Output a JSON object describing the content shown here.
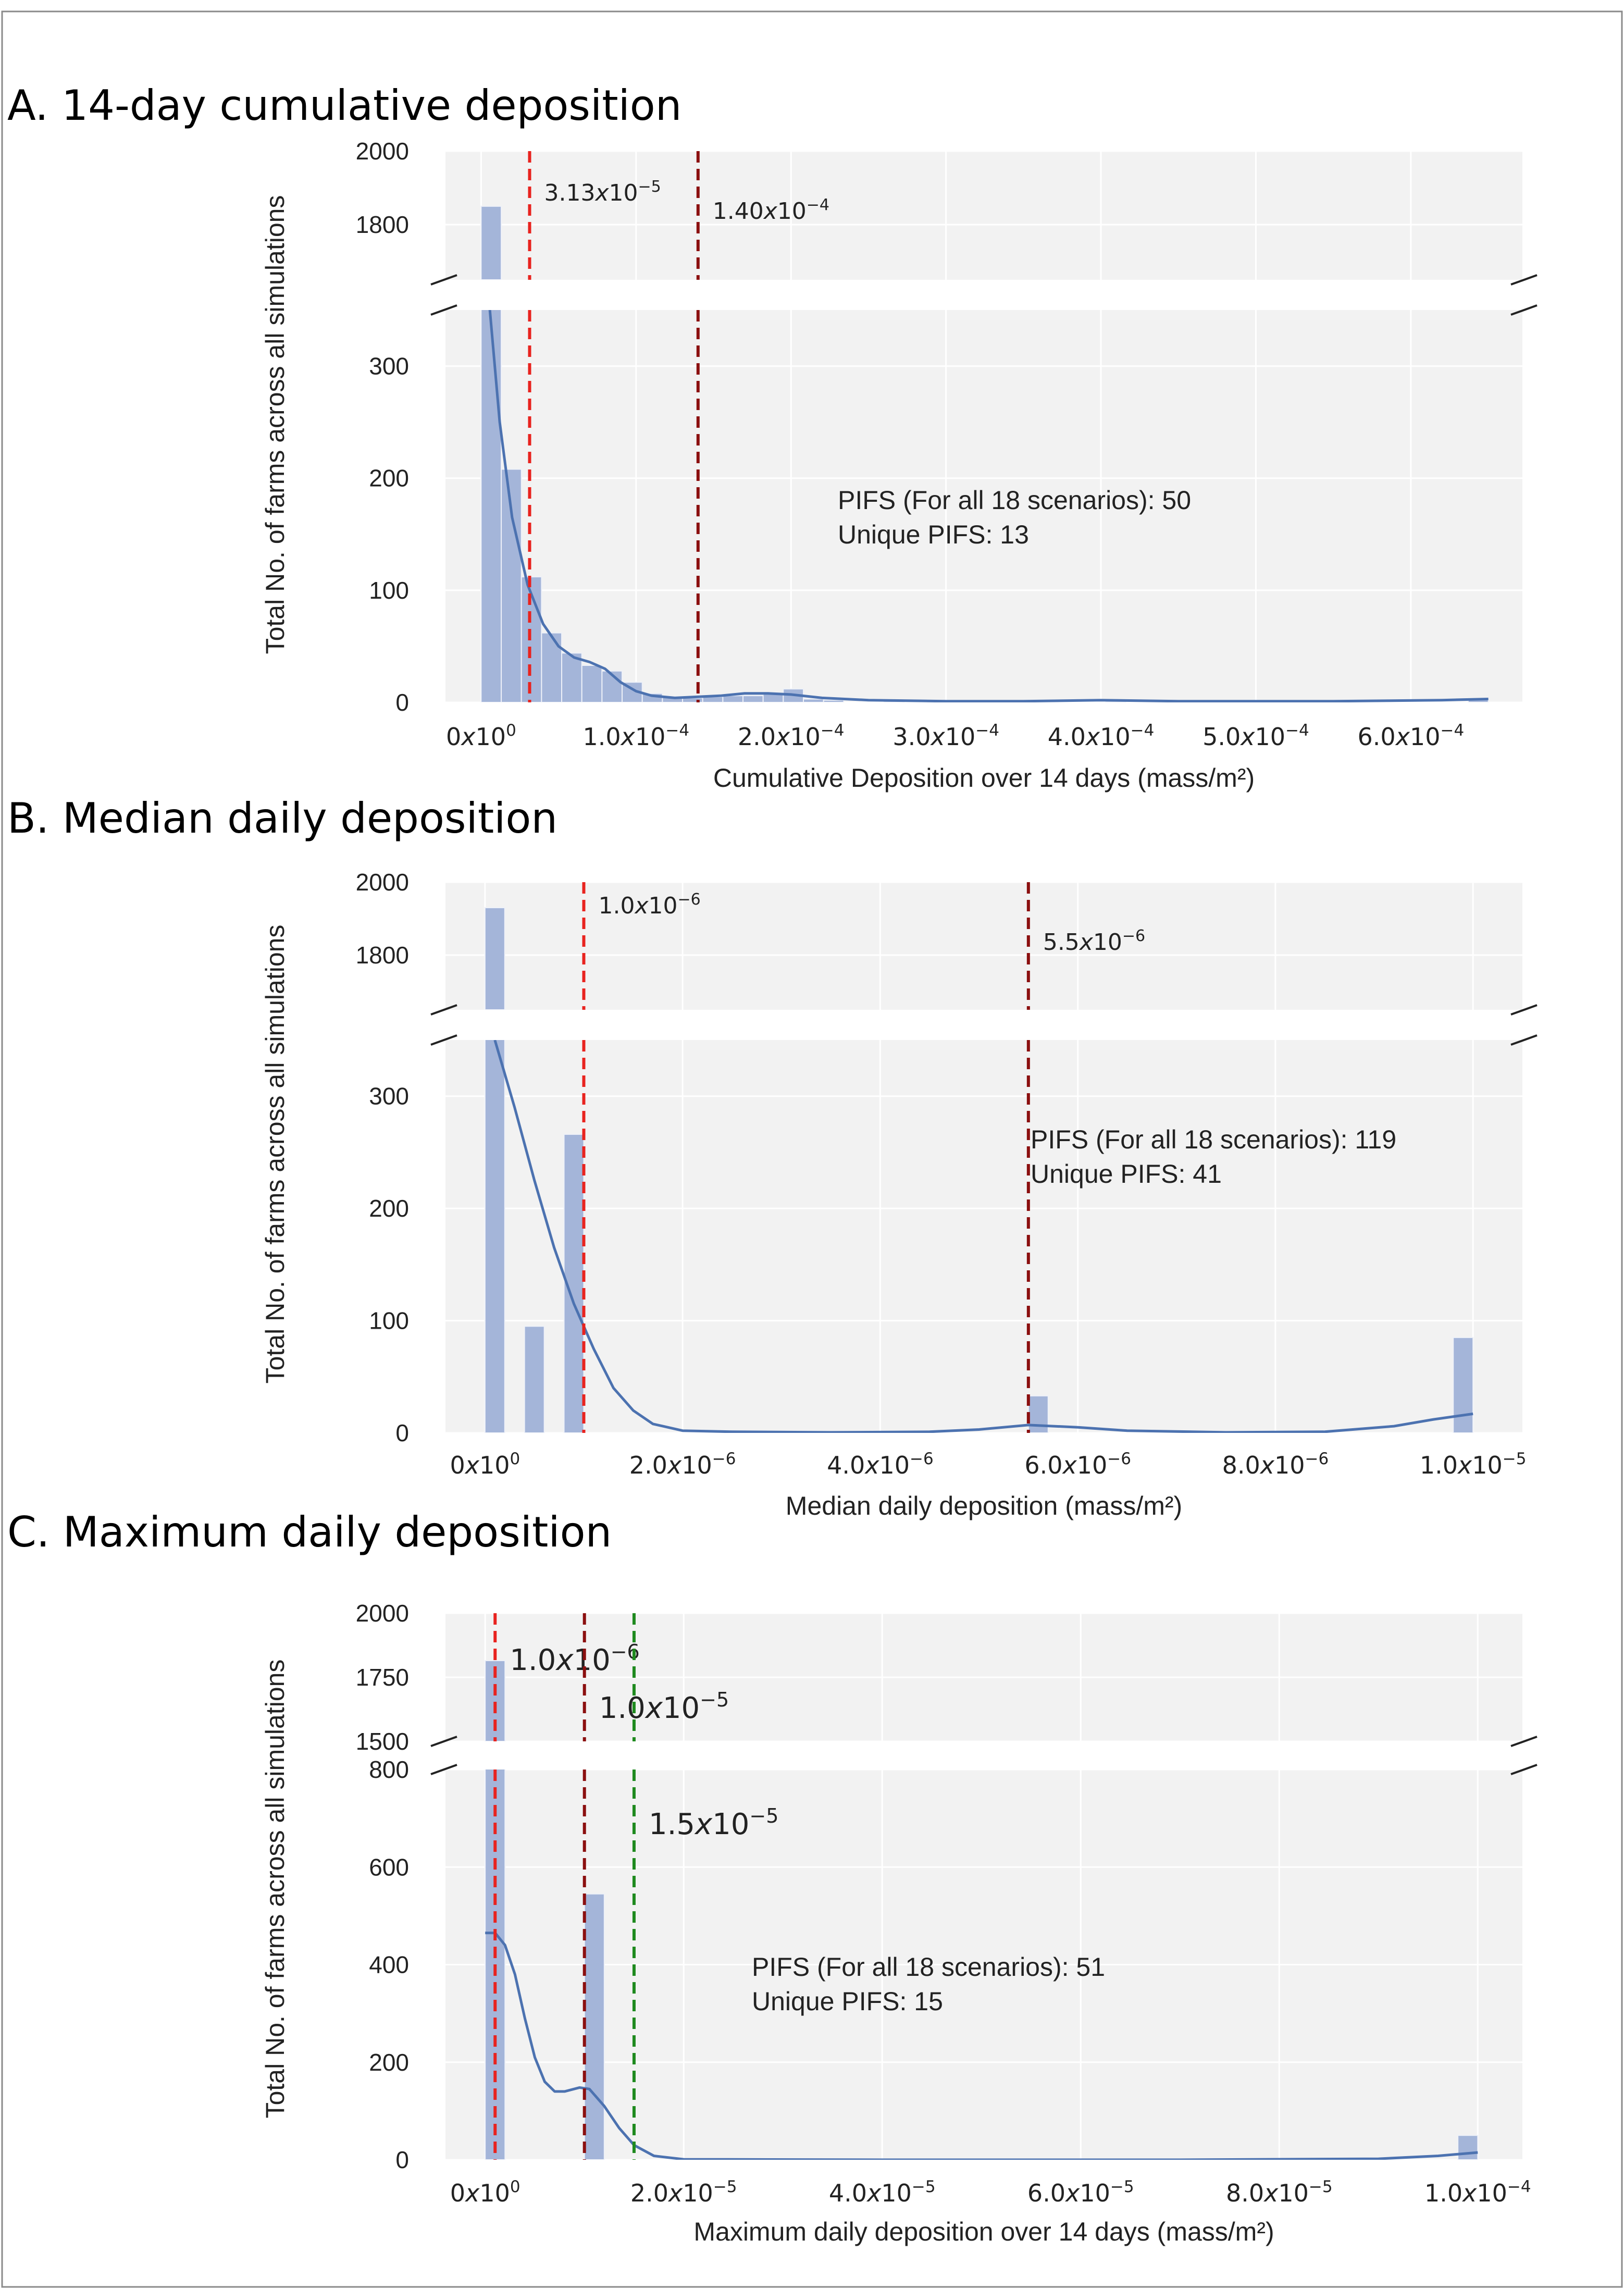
{
  "chart_data": [
    {
      "type": "bar",
      "panel_title": "A. 14-day cumulative deposition",
      "xlabel": "Cumulative Deposition over 14 days (mass/m²)",
      "ylabel": "Total No. of farms across all simulations",
      "xlim": [
        -2.3e-05,
        0.000672
      ],
      "x_ticks": [
        {
          "value": 0,
          "label": "0x10",
          "exp": "0"
        },
        {
          "value": 0.0001,
          "label": "1.0x10",
          "exp": "−4"
        },
        {
          "value": 0.0002,
          "label": "2.0x10",
          "exp": "−4"
        },
        {
          "value": 0.0003,
          "label": "3.0x10",
          "exp": "−4"
        },
        {
          "value": 0.0004,
          "label": "4.0x10",
          "exp": "−4"
        },
        {
          "value": 0.0005,
          "label": "5.0x10",
          "exp": "−4"
        },
        {
          "value": 0.0006,
          "label": "6.0x10",
          "exp": "−4"
        }
      ],
      "upper_ylim": [
        1650,
        2000
      ],
      "upper_ticks": [
        1800,
        2000
      ],
      "lower_ylim": [
        0,
        350
      ],
      "lower_ticks": [
        0,
        100,
        200,
        300
      ],
      "bin_width": 1.3e-05,
      "bars": [
        {
          "x": 0,
          "count": 1850
        },
        {
          "x": 1.3e-05,
          "count": 208
        },
        {
          "x": 2.6e-05,
          "count": 112
        },
        {
          "x": 3.9e-05,
          "count": 62
        },
        {
          "x": 5.2e-05,
          "count": 44
        },
        {
          "x": 6.5e-05,
          "count": 33
        },
        {
          "x": 7.8e-05,
          "count": 28
        },
        {
          "x": 9.1e-05,
          "count": 18
        },
        {
          "x": 0.000104,
          "count": 8
        },
        {
          "x": 0.000117,
          "count": 5
        },
        {
          "x": 0.00013,
          "count": 4
        },
        {
          "x": 0.000143,
          "count": 5
        },
        {
          "x": 0.000156,
          "count": 6
        },
        {
          "x": 0.000169,
          "count": 6
        },
        {
          "x": 0.000182,
          "count": 8
        },
        {
          "x": 0.000195,
          "count": 12
        },
        {
          "x": 0.000208,
          "count": 3
        },
        {
          "x": 0.000221,
          "count": 2
        },
        {
          "x": 0.00026,
          "count": 1
        },
        {
          "x": 0.000312,
          "count": 1
        },
        {
          "x": 0.000403,
          "count": 1
        },
        {
          "x": 0.000637,
          "count": 3
        }
      ],
      "kde": [
        [
          5e-06,
          360
        ],
        [
          1.2e-05,
          250
        ],
        [
          2e-05,
          165
        ],
        [
          3e-05,
          105
        ],
        [
          4e-05,
          70
        ],
        [
          5e-05,
          50
        ],
        [
          6e-05,
          40
        ],
        [
          7e-05,
          36
        ],
        [
          8e-05,
          30
        ],
        [
          9e-05,
          18
        ],
        [
          0.0001,
          10
        ],
        [
          0.00011,
          6
        ],
        [
          0.000125,
          4
        ],
        [
          0.00014,
          5
        ],
        [
          0.000155,
          6
        ],
        [
          0.00017,
          8
        ],
        [
          0.000185,
          8
        ],
        [
          0.0002,
          7
        ],
        [
          0.00022,
          4
        ],
        [
          0.00025,
          2
        ],
        [
          0.0003,
          1
        ],
        [
          0.00035,
          1
        ],
        [
          0.0004,
          2
        ],
        [
          0.00045,
          1
        ],
        [
          0.00055,
          1
        ],
        [
          0.00062,
          2
        ],
        [
          0.00065,
          3
        ]
      ],
      "lines": [
        {
          "x": 3.13e-05,
          "color": "#e8231f",
          "label": "3.13x10",
          "exp": "−5"
        },
        {
          "x": 0.00014,
          "color": "#8b0f0f",
          "label": "1.40x10",
          "exp": "−4"
        }
      ],
      "annotation": [
        "PIFS (For all 18 scenarios): 50",
        "Unique PIFS: 13"
      ]
    },
    {
      "type": "bar",
      "panel_title": "B. Median daily deposition",
      "xlabel": "Median daily deposition (mass/m²)",
      "ylabel": "Total No. of farms across all simulations",
      "xlim": [
        -4e-07,
        1.05e-05
      ],
      "x_ticks": [
        {
          "value": 0,
          "label": "0x10",
          "exp": "0"
        },
        {
          "value": 2e-06,
          "label": "2.0x10",
          "exp": "−6"
        },
        {
          "value": 4e-06,
          "label": "4.0x10",
          "exp": "−6"
        },
        {
          "value": 6e-06,
          "label": "6.0x10",
          "exp": "−6"
        },
        {
          "value": 8e-06,
          "label": "8.0x10",
          "exp": "−6"
        },
        {
          "value": 1e-05,
          "label": "1.0x10",
          "exp": "−5"
        }
      ],
      "upper_ylim": [
        1650,
        2000
      ],
      "upper_ticks": [
        1800,
        2000
      ],
      "lower_ylim": [
        0,
        350
      ],
      "lower_ticks": [
        0,
        100,
        200,
        300
      ],
      "bin_width": 2e-07,
      "bars": [
        {
          "x": 0,
          "count": 1930
        },
        {
          "x": 4e-07,
          "count": 95
        },
        {
          "x": 8e-07,
          "count": 266
        },
        {
          "x": 5.5e-06,
          "count": 33
        },
        {
          "x": 9.8e-06,
          "count": 85
        }
      ],
      "kde": [
        [
          1e-07,
          350
        ],
        [
          3e-07,
          290
        ],
        [
          5e-07,
          225
        ],
        [
          7e-07,
          165
        ],
        [
          9e-07,
          115
        ],
        [
          1.1e-06,
          75
        ],
        [
          1.3e-06,
          40
        ],
        [
          1.5e-06,
          20
        ],
        [
          1.7e-06,
          8
        ],
        [
          2e-06,
          2
        ],
        [
          2.5e-06,
          1
        ],
        [
          3.5e-06,
          0.5
        ],
        [
          4.5e-06,
          1
        ],
        [
          5e-06,
          3
        ],
        [
          5.5e-06,
          7
        ],
        [
          6e-06,
          5
        ],
        [
          6.5e-06,
          2
        ],
        [
          7.5e-06,
          0.5
        ],
        [
          8.5e-06,
          1
        ],
        [
          9.2e-06,
          6
        ],
        [
          9.6e-06,
          12
        ],
        [
          1e-05,
          17
        ]
      ],
      "lines": [
        {
          "x": 1e-06,
          "color": "#e8231f",
          "label": "1.0x10",
          "exp": "−6"
        },
        {
          "x": 5.5e-06,
          "color": "#8b0f0f",
          "label": "5.5x10",
          "exp": "−6"
        }
      ],
      "annotation": [
        "PIFS (For all 18 scenarios): 119",
        "Unique PIFS: 41"
      ]
    },
    {
      "type": "bar",
      "panel_title": "C. Maximum daily deposition",
      "xlabel": "Maximum daily deposition over 14 days (mass/m²)",
      "ylabel": "Total No. of farms across all simulations",
      "xlim": [
        -4e-06,
        0.0001045
      ],
      "x_ticks": [
        {
          "value": 0,
          "label": "0x10",
          "exp": "0"
        },
        {
          "value": 2e-05,
          "label": "2.0x10",
          "exp": "−5"
        },
        {
          "value": 4e-05,
          "label": "4.0x10",
          "exp": "−5"
        },
        {
          "value": 6e-05,
          "label": "6.0x10",
          "exp": "−5"
        },
        {
          "value": 8e-05,
          "label": "8.0x10",
          "exp": "−5"
        },
        {
          "value": 0.0001,
          "label": "1.0x10",
          "exp": "−4"
        }
      ],
      "upper_ylim": [
        1500,
        2000
      ],
      "upper_ticks": [
        1500,
        1750,
        2000
      ],
      "lower_ylim": [
        0,
        800
      ],
      "lower_ticks": [
        0,
        200,
        400,
        600,
        800
      ],
      "bin_width": 2e-06,
      "bars": [
        {
          "x": 0,
          "count": 1815
        },
        {
          "x": 1e-05,
          "count": 545
        },
        {
          "x": 9.8e-05,
          "count": 50
        }
      ],
      "kde": [
        [
          0,
          465
        ],
        [
          1e-06,
          465
        ],
        [
          2e-06,
          440
        ],
        [
          3e-06,
          380
        ],
        [
          4e-06,
          290
        ],
        [
          5e-06,
          210
        ],
        [
          6e-06,
          160
        ],
        [
          7e-06,
          140
        ],
        [
          8e-06,
          140
        ],
        [
          9.5e-06,
          148
        ],
        [
          1.05e-05,
          145
        ],
        [
          1.2e-05,
          110
        ],
        [
          1.35e-05,
          65
        ],
        [
          1.5e-05,
          30
        ],
        [
          1.7e-05,
          8
        ],
        [
          2e-05,
          1
        ],
        [
          4e-05,
          0
        ],
        [
          7e-05,
          0
        ],
        [
          9e-05,
          2
        ],
        [
          9.6e-05,
          8
        ],
        [
          0.0001,
          15
        ]
      ],
      "lines": [
        {
          "x": 1e-06,
          "color": "#e8231f",
          "label": "1.0x10",
          "exp": "−6"
        },
        {
          "x": 1e-05,
          "color": "#8b0f0f",
          "label": "1.0x10",
          "exp": "−5"
        },
        {
          "x": 1.5e-05,
          "color": "#1f8a1f",
          "label": "1.5x10",
          "exp": "−5"
        }
      ],
      "annotation": [
        "PIFS (For all 18 scenarios): 51",
        "Unique PIFS: 15"
      ]
    }
  ]
}
